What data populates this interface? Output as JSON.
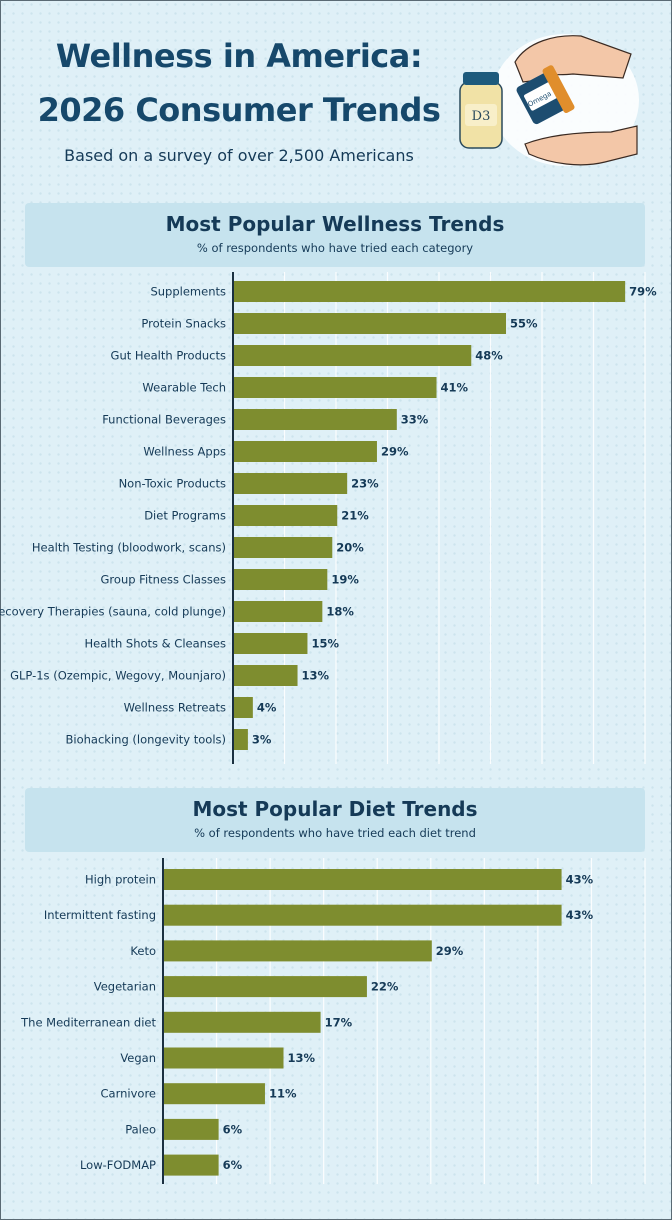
{
  "header": {
    "title_line1": "Wellness in America:",
    "title_line2": "2026 Consumer Trends",
    "subtitle": "Based on a survey of over 2,500 Americans"
  },
  "illustration": {
    "jar_label": "D3",
    "bottle_label": "Omega 3",
    "icon": "supplements-hands-illustration"
  },
  "colors": {
    "bar": "#7e8d2f",
    "title": "#16486b",
    "text": "#153a57",
    "banner": "#c6e3ee",
    "background": "#dff0f7",
    "grid": "#ffffff",
    "axis": "#1a3040"
  },
  "chart_data": [
    {
      "type": "bar",
      "orientation": "horizontal",
      "title": "Most Popular Wellness Trends",
      "subtitle": "% of respondents who have tried each category",
      "categories": [
        "Supplements",
        "Protein Snacks",
        "Gut Health Products",
        "Wearable Tech",
        "Functional Beverages",
        "Wellness Apps",
        "Non-Toxic Products",
        "Diet Programs",
        "Health Testing (bloodwork, scans)",
        "Group Fitness Classes",
        "Recovery Therapies (sauna, cold plunge)",
        "Health Shots & Cleanses",
        "GLP-1s (Ozempic, Wegovy, Mounjaro)",
        "Wellness Retreats",
        "Biohacking (longevity tools)"
      ],
      "values": [
        79,
        55,
        48,
        41,
        33,
        29,
        23,
        21,
        20,
        19,
        18,
        15,
        13,
        4,
        3
      ],
      "value_labels": [
        "79%",
        "55%",
        "48%",
        "41%",
        "33%",
        "29%",
        "23%",
        "21%",
        "20%",
        "19%",
        "18%",
        "15%",
        "13%",
        "4%",
        "3%"
      ],
      "xlim": [
        0,
        83
      ],
      "grid": true
    },
    {
      "type": "bar",
      "orientation": "horizontal",
      "title": "Most Popular Diet Trends",
      "subtitle": "% of respondents who have tried each diet trend",
      "categories": [
        "High protein",
        "Intermittent fasting",
        "Keto",
        "Vegetarian",
        "The Mediterranean diet",
        "Vegan",
        "Carnivore",
        "Paleo",
        "Low-FODMAP"
      ],
      "values": [
        43,
        43,
        29,
        22,
        17,
        13,
        11,
        6,
        6
      ],
      "value_labels": [
        "43%",
        "43%",
        "29%",
        "22%",
        "17%",
        "13%",
        "11%",
        "6%",
        "6%"
      ],
      "xlim": [
        0,
        52
      ],
      "grid": true
    }
  ]
}
